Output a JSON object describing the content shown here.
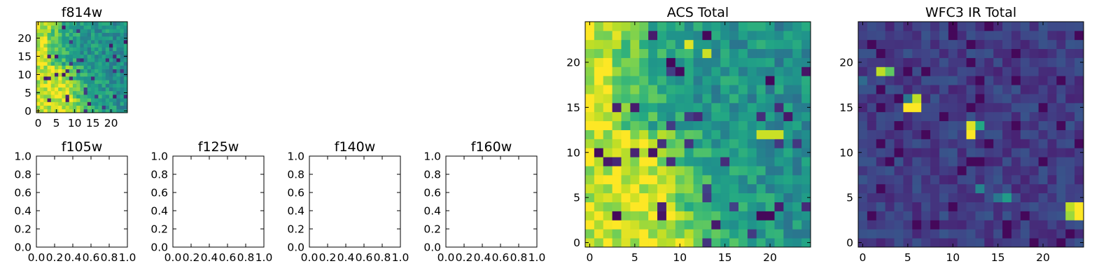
{
  "chart_data": [
    {
      "id": "f814w",
      "type": "heatmap",
      "title": "f814w",
      "xlim": [
        -0.5,
        24.5
      ],
      "ylim": [
        -0.5,
        24.5
      ],
      "xticks": [
        0,
        5,
        10,
        15,
        20
      ],
      "yticks": [
        0,
        5,
        10,
        15,
        20
      ],
      "colormap": "viridis",
      "z": {
        "grid_size": [
          25,
          25
        ],
        "pattern": "bright band near left edge fading toward right, scattered noise",
        "seed": 814
      }
    },
    {
      "id": "f105w",
      "type": "empty",
      "title": "f105w",
      "xlim": [
        0,
        1
      ],
      "ylim": [
        0,
        1
      ],
      "xticks": [
        0.0,
        0.2,
        0.4,
        0.6,
        0.8,
        1.0
      ],
      "yticks": [
        0.0,
        0.2,
        0.4,
        0.6,
        0.8,
        1.0
      ]
    },
    {
      "id": "f125w",
      "type": "empty",
      "title": "f125w",
      "xlim": [
        0,
        1
      ],
      "ylim": [
        0,
        1
      ],
      "xticks": [
        0.0,
        0.2,
        0.4,
        0.6,
        0.8,
        1.0
      ],
      "yticks": [
        0.0,
        0.2,
        0.4,
        0.6,
        0.8,
        1.0
      ]
    },
    {
      "id": "f140w",
      "type": "empty",
      "title": "f140w",
      "xlim": [
        0,
        1
      ],
      "ylim": [
        0,
        1
      ],
      "xticks": [
        0.0,
        0.2,
        0.4,
        0.6,
        0.8,
        1.0
      ],
      "yticks": [
        0.0,
        0.2,
        0.4,
        0.6,
        0.8,
        1.0
      ]
    },
    {
      "id": "f160w",
      "type": "empty",
      "title": "f160w",
      "xlim": [
        0,
        1
      ],
      "ylim": [
        0,
        1
      ],
      "xticks": [
        0.0,
        0.2,
        0.4,
        0.6,
        0.8,
        1.0
      ],
      "yticks": [
        0.0,
        0.2,
        0.4,
        0.6,
        0.8,
        1.0
      ]
    },
    {
      "id": "acs-total",
      "type": "heatmap",
      "title": "ACS Total",
      "xlim": [
        -0.5,
        24.5
      ],
      "ylim": [
        -0.5,
        24.5
      ],
      "xticks": [
        0,
        5,
        10,
        15,
        20
      ],
      "yticks": [
        0,
        5,
        10,
        15,
        20
      ],
      "colormap": "viridis",
      "z": {
        "grid_size": [
          25,
          25
        ],
        "pattern": "bright band near left edge fading toward right, scattered noise",
        "seed": 814
      },
      "highlights": [
        {
          "x": 19,
          "y": 12,
          "v": 0.92
        },
        {
          "x": 20,
          "y": 12,
          "v": 0.92
        },
        {
          "x": 21,
          "y": 12,
          "v": 0.92
        },
        {
          "x": 7,
          "y": 9,
          "v": 1.0
        },
        {
          "x": 10,
          "y": 0,
          "v": 1.0
        },
        {
          "x": 9,
          "y": 6,
          "v": 0.95
        },
        {
          "x": 11,
          "y": 22,
          "v": 0.95
        },
        {
          "x": 13,
          "y": 21,
          "v": 0.92
        },
        {
          "x": 10,
          "y": 19,
          "v": 0.03
        },
        {
          "x": 9,
          "y": 20,
          "v": 0.02
        },
        {
          "x": 20,
          "y": 18,
          "v": 0.02
        },
        {
          "x": 13,
          "y": 23,
          "v": 0.02
        },
        {
          "x": 1,
          "y": 10,
          "v": 0.03
        },
        {
          "x": 3,
          "y": 3,
          "v": 0.02
        },
        {
          "x": 19,
          "y": 3,
          "v": 0.02
        },
        {
          "x": 20,
          "y": 3,
          "v": 0.02
        }
      ]
    },
    {
      "id": "wfc3-ir-total",
      "type": "heatmap",
      "title": "WFC3 IR Total",
      "xlim": [
        -0.5,
        24.5
      ],
      "ylim": [
        -0.5,
        24.5
      ],
      "xticks": [
        0,
        5,
        10,
        15,
        20
      ],
      "yticks": [
        0,
        5,
        10,
        15,
        20
      ],
      "colormap": "viridis",
      "z": {
        "grid_size": [
          25,
          25
        ],
        "pattern": "dark background noise with a few bright compact sources",
        "seed": 160
      },
      "highlights": [
        {
          "x": 5,
          "y": 15,
          "v": 1.0
        },
        {
          "x": 6,
          "y": 15,
          "v": 1.0
        },
        {
          "x": 6,
          "y": 16,
          "v": 0.9
        },
        {
          "x": 5,
          "y": 16,
          "v": 0.4
        },
        {
          "x": 12,
          "y": 12,
          "v": 1.0
        },
        {
          "x": 12,
          "y": 13,
          "v": 0.95
        },
        {
          "x": 13,
          "y": 13,
          "v": 0.6
        },
        {
          "x": 2,
          "y": 19,
          "v": 0.9
        },
        {
          "x": 3,
          "y": 19,
          "v": 0.75
        },
        {
          "x": 24,
          "y": 3,
          "v": 1.0
        },
        {
          "x": 24,
          "y": 4,
          "v": 1.0
        },
        {
          "x": 23,
          "y": 4,
          "v": 0.9
        },
        {
          "x": 23,
          "y": 3,
          "v": 0.85
        },
        {
          "x": 16,
          "y": 5,
          "v": 0.55
        },
        {
          "x": 15,
          "y": 5,
          "v": 0.4
        },
        {
          "x": 13,
          "y": 6,
          "v": 0.45
        },
        {
          "x": 0,
          "y": 18,
          "v": 0.35
        }
      ]
    }
  ]
}
